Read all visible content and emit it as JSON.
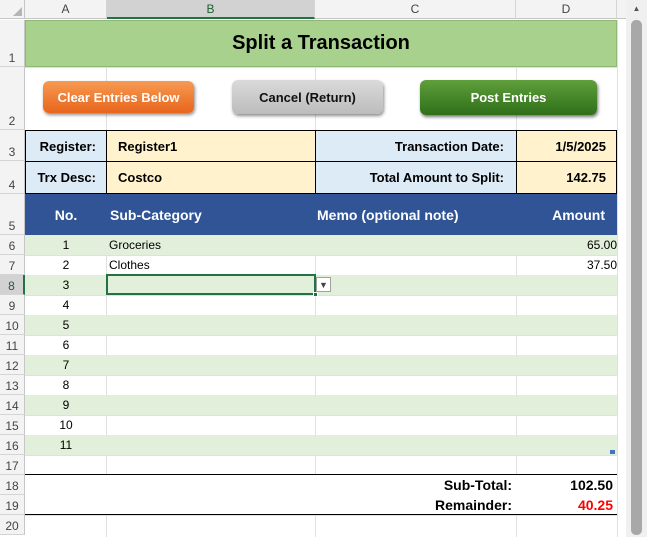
{
  "columns": [
    "A",
    "B",
    "C",
    "D"
  ],
  "rows": [
    "1",
    "2",
    "3",
    "4",
    "5",
    "6",
    "7",
    "8",
    "9",
    "10",
    "11",
    "12",
    "13",
    "14",
    "15",
    "16",
    "17",
    "18",
    "19",
    "20"
  ],
  "title": "Split a Transaction",
  "buttons": {
    "clear": "Clear Entries Below",
    "cancel": "Cancel (Return)",
    "post": "Post Entries"
  },
  "form": {
    "register_label": "Register:",
    "register_value": "Register1",
    "date_label": "Transaction Date:",
    "date_value": "1/5/2025",
    "desc_label": "Trx Desc:",
    "desc_value": "Costco",
    "total_label": "Total Amount to Split:",
    "total_value": "142.75"
  },
  "table": {
    "headers": {
      "no": "No.",
      "subcat": "Sub-Category",
      "memo": "Memo (optional note)",
      "amount": "Amount"
    },
    "rows": [
      {
        "no": "1",
        "subcat": "Groceries",
        "memo": "",
        "amount": "65.00"
      },
      {
        "no": "2",
        "subcat": "Clothes",
        "memo": "",
        "amount": "37.50"
      },
      {
        "no": "3",
        "subcat": "",
        "memo": "",
        "amount": ""
      },
      {
        "no": "4",
        "subcat": "",
        "memo": "",
        "amount": ""
      },
      {
        "no": "5",
        "subcat": "",
        "memo": "",
        "amount": ""
      },
      {
        "no": "6",
        "subcat": "",
        "memo": "",
        "amount": ""
      },
      {
        "no": "7",
        "subcat": "",
        "memo": "",
        "amount": ""
      },
      {
        "no": "8",
        "subcat": "",
        "memo": "",
        "amount": ""
      },
      {
        "no": "9",
        "subcat": "",
        "memo": "",
        "amount": ""
      },
      {
        "no": "10",
        "subcat": "",
        "memo": "",
        "amount": ""
      },
      {
        "no": "11",
        "subcat": "",
        "memo": "",
        "amount": ""
      }
    ]
  },
  "totals": {
    "subtotal_label": "Sub-Total:",
    "subtotal_value": "102.50",
    "remainder_label": "Remainder:",
    "remainder_value": "40.25"
  },
  "colors": {
    "remainder": "#ff0000",
    "header": "#305496",
    "band": "#e2efda",
    "title": "#a9d18e"
  }
}
